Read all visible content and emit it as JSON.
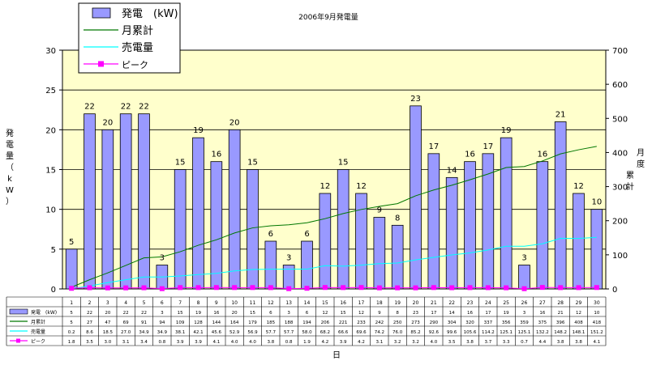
{
  "chart_data": {
    "type": "bar",
    "title": "2006年9月発電量",
    "xlabel": "日",
    "ylabel_left": "発電量（kW）",
    "ylabel_right": "月度累計",
    "ylim_left": [
      0,
      30
    ],
    "yticks_left": [
      "0",
      "5",
      "10",
      "15",
      "20",
      "25",
      "30"
    ],
    "ylim_right": [
      0,
      700
    ],
    "yticks_right": [
      "0",
      "100",
      "200",
      "300",
      "400",
      "500",
      "600",
      "700"
    ],
    "grid": true,
    "legend_position": "top-left",
    "categories": [
      "1",
      "2",
      "3",
      "4",
      "5",
      "6",
      "7",
      "8",
      "9",
      "10",
      "11",
      "12",
      "13",
      "14",
      "15",
      "16",
      "17",
      "18",
      "19",
      "20",
      "21",
      "22",
      "23",
      "24",
      "25",
      "26",
      "27",
      "28",
      "29",
      "30"
    ],
    "series": [
      {
        "name": "発電　(kW)",
        "kind": "bar",
        "axis": "left",
        "color": "#9999ff",
        "values": [
          5,
          22,
          20,
          22,
          22,
          3,
          15,
          19,
          16,
          20,
          15,
          6,
          3,
          6,
          12,
          15,
          12,
          9,
          8,
          23,
          17,
          14,
          16,
          17,
          19,
          3,
          16,
          21,
          12,
          10
        ],
        "labels": [
          "5",
          "22",
          "20",
          "22",
          "22",
          "3",
          "15",
          "19",
          "16",
          "20",
          "15",
          "6",
          "3",
          "6",
          "12",
          "15",
          "12",
          "9",
          "8",
          "23",
          "17",
          "14",
          "16",
          "17",
          "19",
          "3",
          "16",
          "21",
          "12",
          "10"
        ]
      },
      {
        "name": "月累計",
        "kind": "line",
        "axis": "right",
        "color": "#007700",
        "values": [
          5,
          27,
          47,
          69,
          91,
          94,
          109,
          128,
          144,
          164,
          179,
          185,
          188,
          194,
          206,
          221,
          233,
          242,
          250,
          273,
          290,
          304,
          320,
          337,
          356,
          359,
          375,
          396,
          408,
          418
        ],
        "labels": [
          "5",
          "27",
          "47",
          "69",
          "91",
          "94",
          "109",
          "128",
          "144",
          "164",
          "179",
          "185",
          "188",
          "194",
          "206",
          "221",
          "233",
          "242",
          "250",
          "273",
          "290",
          "304",
          "320",
          "337",
          "356",
          "359",
          "375",
          "396",
          "408",
          "418"
        ]
      },
      {
        "name": "売電量",
        "kind": "line",
        "axis": "right",
        "color": "#00ffff",
        "values": [
          0.2,
          8.6,
          18.5,
          27.0,
          34.9,
          34.9,
          38.1,
          42.1,
          45.6,
          52.9,
          56.9,
          57.7,
          57.7,
          58.0,
          68.2,
          66.6,
          69.6,
          74.2,
          76.0,
          85.2,
          92.6,
          99.6,
          105.6,
          114.2,
          125.1,
          125.1,
          132.2,
          148.2,
          148.1,
          151.2
        ],
        "labels": [
          "0.2",
          "8.6",
          "18.5",
          "27.0",
          "34.9",
          "34.9",
          "38.1",
          "42.1",
          "45.6",
          "52.9",
          "56.9",
          "57.7",
          "57.7",
          "58.0",
          "68.2",
          "66.6",
          "69.6",
          "74.2",
          "76.0",
          "85.2",
          "92.6",
          "99.6",
          "105.6",
          "114.2",
          "125.1",
          "125.1",
          "132.2",
          "148.2",
          "148.1",
          "151.2"
        ]
      },
      {
        "name": "ピーク",
        "kind": "line-marker",
        "axis": "left",
        "color": "#ff00ff",
        "values": [
          1.8,
          3.5,
          3.0,
          3.1,
          3.4,
          0.8,
          3.9,
          3.9,
          4.1,
          4.0,
          4.0,
          3.8,
          0.8,
          1.9,
          4.2,
          3.9,
          4.2,
          3.1,
          3.2,
          3.2,
          4.0,
          3.5,
          3.8,
          3.7,
          3.3,
          0.7,
          4.4,
          3.8,
          3.8,
          4.1
        ],
        "labels": [
          "1.8",
          "3.5",
          "3.0",
          "3.1",
          "3.4",
          "0.8",
          "3.9",
          "3.9",
          "4.1",
          "4.0",
          "4.0",
          "3.8",
          "0.8",
          "1.9",
          "4.2",
          "3.9",
          "4.2",
          "3.1",
          "3.2",
          "3.2",
          "4.0",
          "3.5",
          "3.8",
          "3.7",
          "3.3",
          "0.7",
          "4.4",
          "3.8",
          "3.8",
          "4.1"
        ]
      }
    ]
  },
  "colors": {
    "plot_background": "#ffffcc",
    "bar_fill": "#9999ff",
    "bar_stroke": "#000000",
    "cumulative_line": "#007700",
    "sold_line": "#00ffff",
    "peak_line": "#ff00ff"
  }
}
